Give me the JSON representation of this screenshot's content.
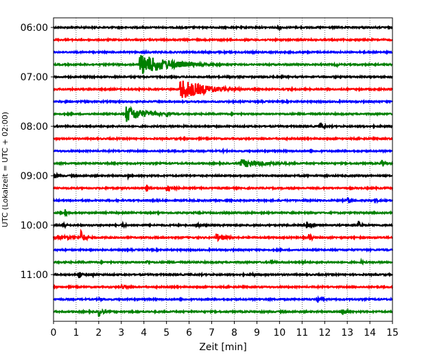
{
  "chart_data": {
    "type": "line",
    "title": "",
    "xlabel": "Zeit  [min]",
    "ylabel": "UTC (Lokalzeit = UTC + 02:00)",
    "xlim": [
      0,
      15
    ],
    "x_ticks": [
      "0",
      "1",
      "2",
      "3",
      "4",
      "5",
      "6",
      "7",
      "8",
      "9",
      "10",
      "11",
      "12",
      "13",
      "14",
      "15"
    ],
    "y_ticks": [
      "06:00",
      "07:00",
      "08:00",
      "09:00",
      "10:00",
      "11:00"
    ],
    "trace_interval_min": 15,
    "grid": "vertical dotted",
    "colors": [
      "#000000",
      "#ff0000",
      "#0000ff",
      "#008000"
    ],
    "traces": [
      {
        "start": "06:00",
        "color": "#000000",
        "bursts": [
          [
            10.0,
            0.2,
            0.2
          ]
        ]
      },
      {
        "start": "06:15",
        "color": "#ff0000",
        "bursts": []
      },
      {
        "start": "06:30",
        "color": "#0000ff",
        "bursts": []
      },
      {
        "start": "06:45",
        "color": "#008000",
        "bursts": [
          [
            3.8,
            1.0,
            3.0
          ],
          [
            12.5,
            0.2,
            0.3
          ]
        ]
      },
      {
        "start": "07:00",
        "color": "#000000",
        "bursts": []
      },
      {
        "start": "07:15",
        "color": "#ff0000",
        "bursts": [
          [
            5.6,
            1.0,
            2.5
          ],
          [
            10.5,
            0.2,
            0.2
          ]
        ]
      },
      {
        "start": "07:30",
        "color": "#0000ff",
        "bursts": []
      },
      {
        "start": "07:45",
        "color": "#008000",
        "bursts": [
          [
            3.2,
            0.8,
            1.8
          ],
          [
            5.0,
            0.3,
            0.5
          ]
        ]
      },
      {
        "start": "08:00",
        "color": "#000000",
        "bursts": [
          [
            11.8,
            0.4,
            0.4
          ]
        ]
      },
      {
        "start": "08:15",
        "color": "#ff0000",
        "bursts": []
      },
      {
        "start": "08:30",
        "color": "#0000ff",
        "bursts": [
          [
            7.5,
            0.2,
            0.2
          ]
        ]
      },
      {
        "start": "08:45",
        "color": "#008000",
        "bursts": [
          [
            8.3,
            0.4,
            3.0
          ],
          [
            14.5,
            0.4,
            0.4
          ]
        ]
      },
      {
        "start": "09:00",
        "color": "#000000",
        "bursts": [
          [
            0.0,
            0.3,
            0.5
          ],
          [
            3.3,
            0.2,
            0.2
          ]
        ]
      },
      {
        "start": "09:15",
        "color": "#ff0000",
        "bursts": [
          [
            4.1,
            0.4,
            0.3
          ],
          [
            5.0,
            0.5,
            0.6
          ]
        ]
      },
      {
        "start": "09:30",
        "color": "#0000ff",
        "bursts": [
          [
            13.0,
            0.4,
            0.4
          ],
          [
            14.2,
            0.2,
            0.5
          ]
        ]
      },
      {
        "start": "09:45",
        "color": "#008000",
        "bursts": [
          [
            0.5,
            0.4,
            0.2
          ]
        ]
      },
      {
        "start": "10:00",
        "color": "#000000",
        "bursts": [
          [
            0.4,
            0.4,
            0.3
          ],
          [
            3.0,
            0.3,
            0.4
          ],
          [
            6.3,
            0.4,
            0.3
          ],
          [
            11.2,
            0.5,
            0.5
          ],
          [
            13.5,
            0.4,
            0.3
          ]
        ]
      },
      {
        "start": "10:15",
        "color": "#ff0000",
        "bursts": [
          [
            0.0,
            0.2,
            3.5
          ],
          [
            1.2,
            0.7,
            0.4
          ],
          [
            7.2,
            0.4,
            1.0
          ],
          [
            11.3,
            0.4,
            0.3
          ]
        ]
      },
      {
        "start": "10:30",
        "color": "#0000ff",
        "bursts": []
      },
      {
        "start": "10:45",
        "color": "#008000",
        "bursts": [
          [
            4.1,
            0.4,
            0.2
          ],
          [
            9.6,
            0.4,
            0.3
          ],
          [
            11.0,
            0.3,
            0.3
          ],
          [
            13.6,
            0.3,
            0.2
          ]
        ]
      },
      {
        "start": "11:00",
        "color": "#000000",
        "bursts": [
          [
            1.1,
            0.4,
            0.3
          ],
          [
            1.7,
            0.4,
            0.2
          ],
          [
            8.8,
            0.3,
            0.2
          ]
        ]
      },
      {
        "start": "11:15",
        "color": "#ff0000",
        "bursts": [
          [
            3.0,
            0.2,
            1.0
          ]
        ]
      },
      {
        "start": "11:30",
        "color": "#0000ff",
        "bursts": [
          [
            2.0,
            0.2,
            0.5
          ],
          [
            11.7,
            0.3,
            0.4
          ]
        ]
      },
      {
        "start": "11:45",
        "color": "#008000",
        "bursts": [
          [
            2.0,
            0.5,
            0.4
          ],
          [
            12.8,
            0.4,
            0.4
          ]
        ]
      }
    ]
  }
}
